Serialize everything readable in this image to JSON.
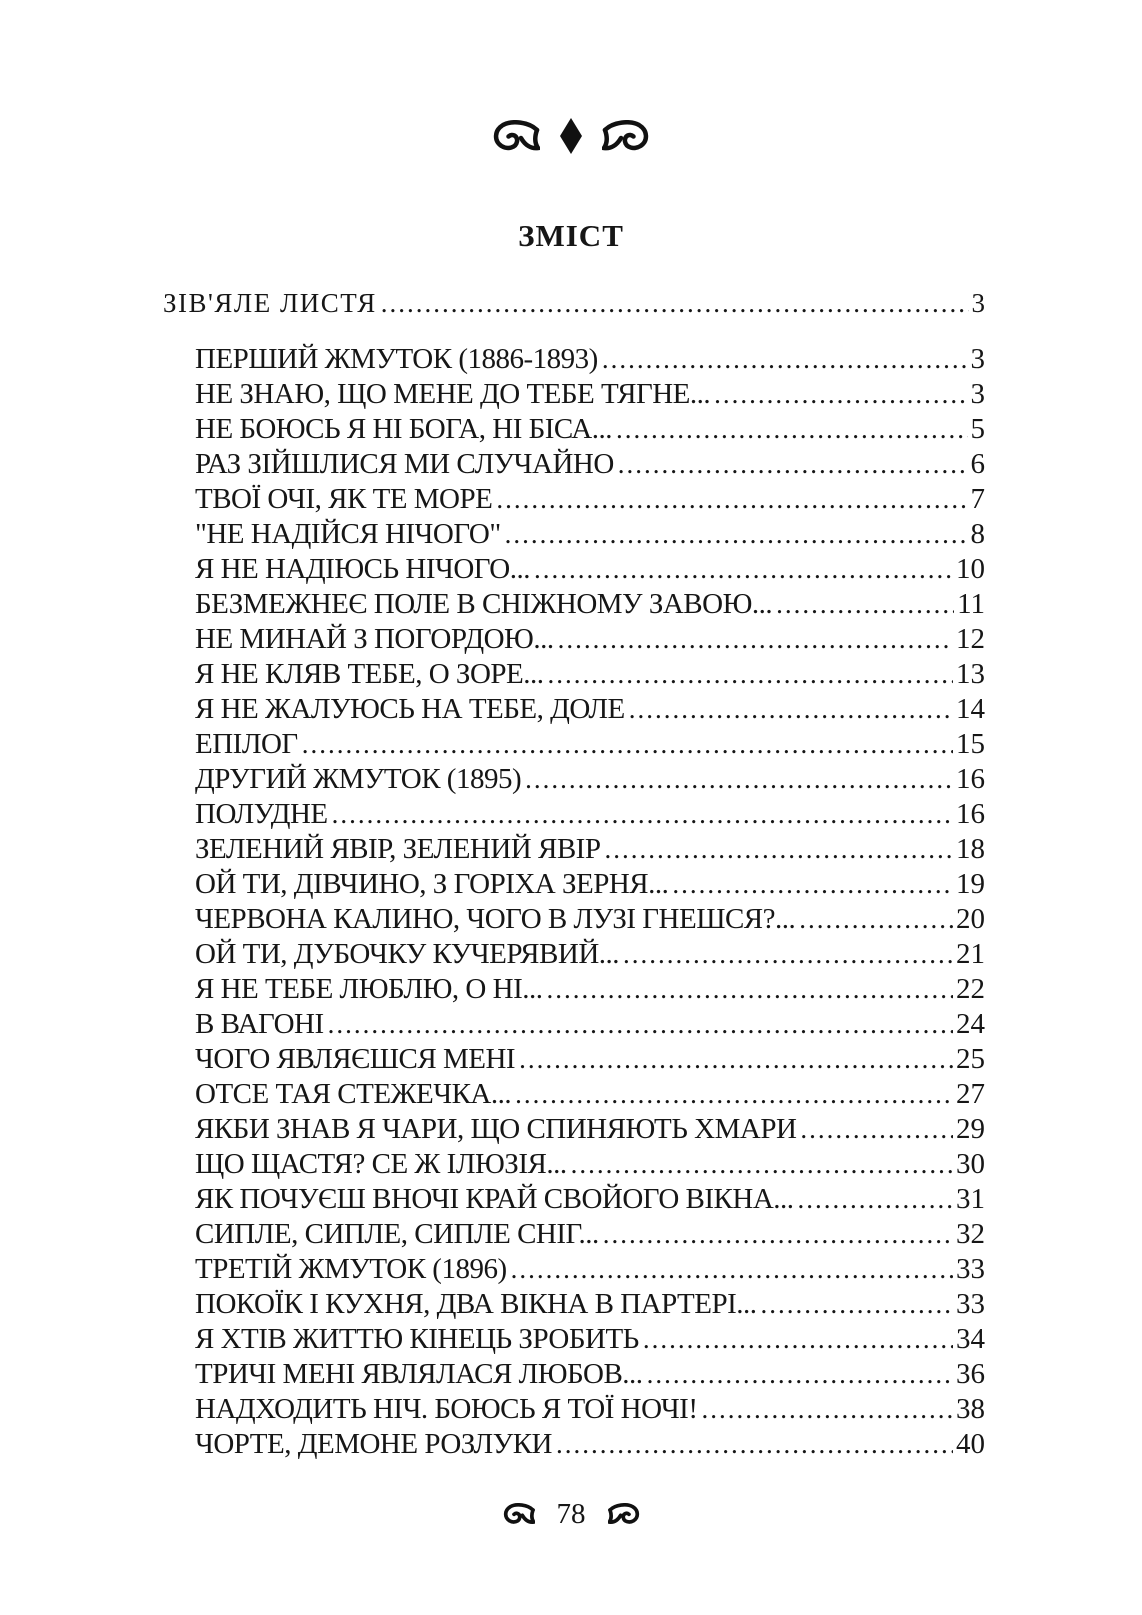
{
  "colors": {
    "background": "#ffffff",
    "text": "#161616",
    "ornament": "#111111"
  },
  "header": {
    "ornaments": [
      "floral-heart-left-icon",
      "diamond-icon",
      "floral-heart-right-icon"
    ],
    "title": "ЗМІСТ"
  },
  "toc": {
    "entries": [
      {
        "label": "ЗІВ'ЯЛЕ ЛИСТЯ",
        "page": "3",
        "level": 0
      },
      {
        "label": "ПЕРШИЙ ЖМУТОК (1886-1893)",
        "page": "3",
        "level": 1
      },
      {
        "label": "НЕ ЗНАЮ, ЩО МЕНЕ ДО ТЕБЕ ТЯГНЕ...",
        "page": "3",
        "level": 1
      },
      {
        "label": "НЕ БОЮСЬ Я НІ БОГА, НІ БІСА...",
        "page": "5",
        "level": 1
      },
      {
        "label": "РАЗ ЗІЙШЛИСЯ МИ СЛУЧАЙНО",
        "page": "6",
        "level": 1
      },
      {
        "label": "ТВОЇ ОЧІ, ЯК ТЕ МОРЕ",
        "page": "7",
        "level": 1
      },
      {
        "label": "\"НЕ НАДІЙСЯ НІЧОГО\"",
        "page": "8",
        "level": 1
      },
      {
        "label": "Я НЕ НАДІЮСЬ НІЧОГО...",
        "page": "10",
        "level": 1
      },
      {
        "label": "БЕЗМЕЖНЕЄ ПОЛЕ В СНІЖНОМУ ЗАВОЮ...",
        "page": "11",
        "level": 1
      },
      {
        "label": "НЕ МИНАЙ З ПОГОРДОЮ...",
        "page": "12",
        "level": 1
      },
      {
        "label": "Я НЕ КЛЯВ ТЕБЕ, О ЗОРЕ...",
        "page": "13",
        "level": 1
      },
      {
        "label": "Я НЕ ЖАЛУЮСЬ НА ТЕБЕ, ДОЛЕ",
        "page": "14",
        "level": 1
      },
      {
        "label": "ЕПІЛОГ",
        "page": "15",
        "level": 1
      },
      {
        "label": "ДРУГИЙ ЖМУТОК (1895)",
        "page": "16",
        "level": 1
      },
      {
        "label": "ПОЛУДНЕ",
        "page": "16",
        "level": 1
      },
      {
        "label": "ЗЕЛЕНИЙ ЯВІР, ЗЕЛЕНИЙ ЯВІР",
        "page": "18",
        "level": 1
      },
      {
        "label": "ОЙ ТИ, ДІВЧИНО, З ГОРІХА ЗЕРНЯ...",
        "page": "19",
        "level": 1
      },
      {
        "label": "ЧЕРВОНА КАЛИНО, ЧОГО В ЛУЗІ ГНЕШСЯ?...",
        "page": "20",
        "level": 1
      },
      {
        "label": "ОЙ ТИ, ДУБОЧКУ КУЧЕРЯВИЙ...",
        "page": "21",
        "level": 1
      },
      {
        "label": "Я НЕ ТЕБЕ ЛЮБЛЮ, О НІ...",
        "page": "22",
        "level": 1
      },
      {
        "label": "В ВАГОНІ",
        "page": "24",
        "level": 1
      },
      {
        "label": "ЧОГО ЯВЛЯЄШСЯ МЕНІ",
        "page": "25",
        "level": 1
      },
      {
        "label": "ОТСЕ ТАЯ СТЕЖЕЧКА...",
        "page": "27",
        "level": 1
      },
      {
        "label": "ЯКБИ ЗНАВ Я ЧАРИ, ЩО СПИНЯЮТЬ ХМАРИ",
        "page": "29",
        "level": 1
      },
      {
        "label": "ЩО ЩАСТЯ? СЕ Ж ІЛЮЗІЯ...",
        "page": "30",
        "level": 1
      },
      {
        "label": "ЯК ПОЧУЄШ ВНОЧІ КРАЙ СВОЙОГО ВІКНА...",
        "page": "31",
        "level": 1
      },
      {
        "label": "СИПЛЕ, СИПЛЕ, СИПЛЕ СНІГ...",
        "page": "32",
        "level": 1
      },
      {
        "label": "ТРЕТІЙ ЖМУТОК (1896)",
        "page": "33",
        "level": 1
      },
      {
        "label": "ПОКОЇК І КУХНЯ, ДВА ВІКНА В ПАРТЕРІ...",
        "page": "33",
        "level": 1
      },
      {
        "label": "Я ХТІВ ЖИТТЮ КІНЕЦЬ ЗРОБИТЬ",
        "page": "34",
        "level": 1
      },
      {
        "label": "ТРИЧІ МЕНІ ЯВЛЯЛАСЯ ЛЮБОВ...",
        "page": "36",
        "level": 1
      },
      {
        "label": "НАДХОДИТЬ НІЧ. БОЮСЬ Я ТОЇ НОЧІ!",
        "page": "38",
        "level": 1
      },
      {
        "label": "ЧОРТЕ, ДЕМОНЕ РОЗЛУКИ",
        "page": "40",
        "level": 1
      }
    ]
  },
  "footer": {
    "left_ornament": "fleuron-left-icon",
    "page_number": "78",
    "right_ornament": "fleuron-right-icon"
  }
}
